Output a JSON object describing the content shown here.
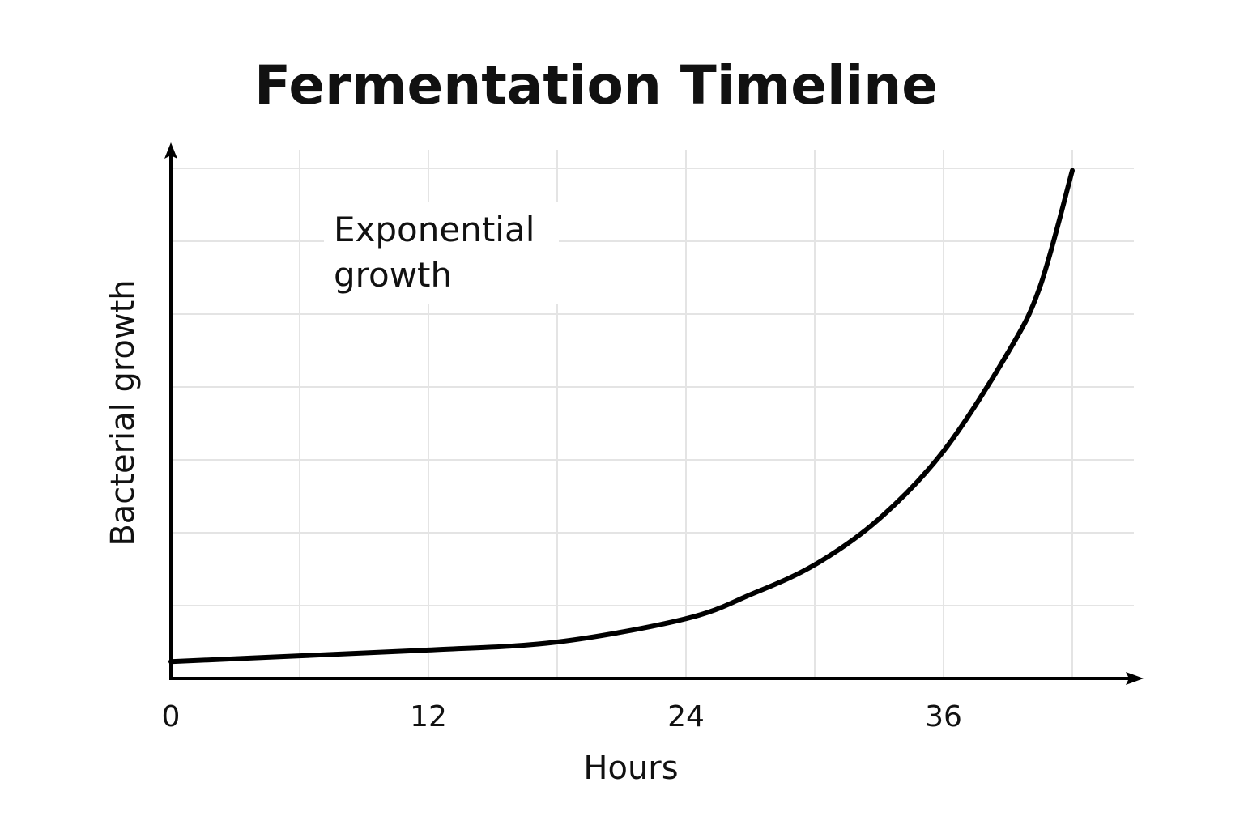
{
  "chart_data": {
    "type": "line",
    "title": "Fermentation Timeline",
    "xlabel": "Hours",
    "ylabel": "Bacterial growth",
    "xlim": [
      0,
      45
    ],
    "ylim": [
      0,
      7
    ],
    "x_ticks": [
      0,
      12,
      24,
      36
    ],
    "x_tick_labels": [
      "0",
      "12",
      "24",
      "36"
    ],
    "y_tick_labels": [],
    "grid": true,
    "annotation": [
      "Exponential",
      "growth"
    ],
    "series": [
      {
        "x": [
          0,
          6,
          12,
          18,
          24,
          27,
          30,
          33,
          36,
          39,
          40.5,
          42
        ],
        "y": [
          0.23,
          0.31,
          0.39,
          0.5,
          0.82,
          1.15,
          1.56,
          2.19,
          3.12,
          4.47,
          5.38,
          6.97
        ],
        "color": "#000000"
      }
    ]
  }
}
